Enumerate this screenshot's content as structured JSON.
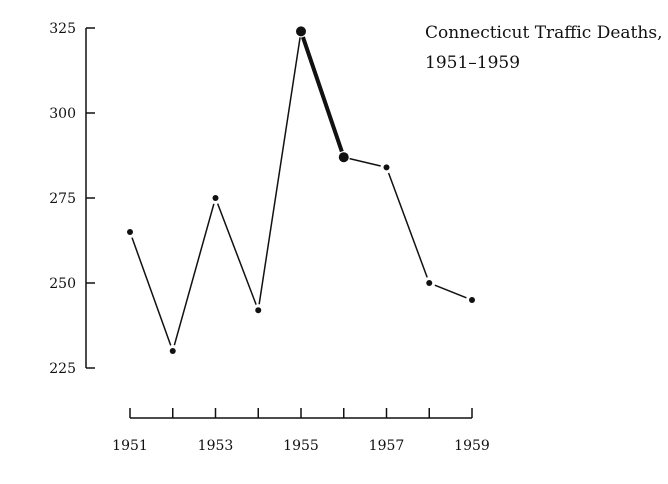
{
  "chart_data": {
    "type": "line",
    "title": "Connecticut Traffic Deaths,",
    "subtitle": "1951–1959",
    "xlabel": "",
    "ylabel": "",
    "x": [
      1951,
      1952,
      1953,
      1954,
      1955,
      1956,
      1957,
      1958,
      1959
    ],
    "xlim": [
      1951,
      1959
    ],
    "x_ticks": [
      1951,
      1952,
      1953,
      1954,
      1955,
      1956,
      1957,
      1958,
      1959
    ],
    "x_tick_labels": [
      "1951",
      "1953",
      "1955",
      "1957",
      "1959"
    ],
    "x_tick_label_values": [
      1951,
      1953,
      1955,
      1957,
      1959
    ],
    "ylim": [
      225,
      325
    ],
    "y_ticks": [
      225,
      250,
      275,
      300,
      325
    ],
    "y_tick_labels": [
      "225",
      "250",
      "275",
      "300",
      "325"
    ],
    "grid": false,
    "series": [
      {
        "values": [
          265,
          230,
          275,
          242,
          324,
          287,
          284,
          250,
          245
        ],
        "emphasized_segments": [
          [
            1955,
            1956
          ]
        ]
      }
    ]
  }
}
